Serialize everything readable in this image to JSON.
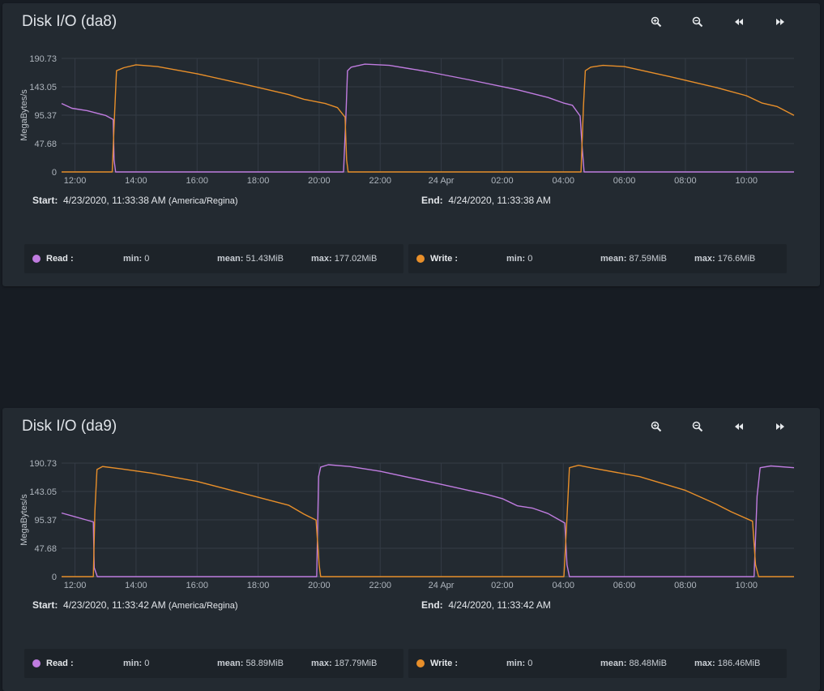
{
  "colors": {
    "read": "#c07ce0",
    "write": "#e88f2a",
    "background": "#171c23",
    "card": "#232a31"
  },
  "toolbar_icons": [
    "zoom-in-icon",
    "zoom-out-icon",
    "rewind-icon",
    "fast-forward-icon"
  ],
  "panels": [
    {
      "title": "Disk I/O (da8)",
      "start_label": "Start:",
      "start_value": "4/23/2020, 11:33:38 AM",
      "start_tz": "(America/Regina)",
      "end_label": "End:",
      "end_value": "4/24/2020, 11:33:38 AM",
      "legend": {
        "read": {
          "name": "Read :",
          "min_label": "min:",
          "min": "0",
          "mean_label": "mean:",
          "mean": "51.43MiB",
          "max_label": "max:",
          "max": "177.02MiB"
        },
        "write": {
          "name": "Write :",
          "min_label": "min:",
          "min": "0",
          "mean_label": "mean:",
          "mean": "87.59MiB",
          "max_label": "max:",
          "max": "176.6MiB"
        }
      }
    },
    {
      "title": "Disk I/O (da9)",
      "start_label": "Start:",
      "start_value": "4/23/2020, 11:33:42 AM",
      "start_tz": "(America/Regina)",
      "end_label": "End:",
      "end_value": "4/24/2020, 11:33:42 AM",
      "legend": {
        "read": {
          "name": "Read :",
          "min_label": "min:",
          "min": "0",
          "mean_label": "mean:",
          "mean": "58.89MiB",
          "max_label": "max:",
          "max": "187.79MiB"
        },
        "write": {
          "name": "Write :",
          "min_label": "min:",
          "min": "0",
          "mean_label": "mean:",
          "mean": "88.48MiB",
          "max_label": "max:",
          "max": "186.46MiB"
        }
      }
    }
  ],
  "chart_data": [
    {
      "type": "line",
      "title": "Disk I/O (da8)",
      "ylabel": "MegaBytes/s",
      "xlabel": "",
      "x_unit": "hours since 4/23/2020 00:00 (America/Regina)",
      "xlim": [
        11.56,
        35.56
      ],
      "ylim": [
        0,
        190.73
      ],
      "yticks": [
        0,
        47.68,
        95.37,
        143.05,
        190.73
      ],
      "ytick_labels": [
        "0",
        "47.68",
        "95.37",
        "143.05",
        "190.73"
      ],
      "xticks": [
        12,
        14,
        16,
        18,
        20,
        22,
        24,
        26,
        28,
        30,
        32,
        34
      ],
      "xtick_labels": [
        "12:00",
        "14:00",
        "16:00",
        "18:00",
        "20:00",
        "22:00",
        "24 Apr",
        "02:00",
        "04:00",
        "06:00",
        "08:00",
        "10:00"
      ],
      "grid": true,
      "legend": "bottom",
      "series": [
        {
          "name": "Read",
          "color": "#c07ce0",
          "x": [
            11.56,
            11.9,
            12.4,
            13.0,
            13.25,
            13.28,
            13.33,
            20.8,
            20.88,
            20.93,
            21.05,
            21.5,
            22.3,
            23.5,
            25.0,
            26.5,
            27.5,
            28.0,
            28.3,
            28.55,
            28.62,
            28.68,
            35.56
          ],
          "y": [
            115,
            107,
            103,
            95,
            88,
            20,
            0,
            0,
            100,
            170,
            176,
            181,
            179,
            169,
            154,
            138,
            125,
            116,
            112,
            94,
            40,
            0,
            0
          ]
        },
        {
          "name": "Write",
          "color": "#e88f2a",
          "x": [
            11.56,
            13.22,
            13.3,
            13.36,
            13.6,
            14.0,
            14.7,
            16.0,
            17.5,
            19.0,
            19.5,
            20.2,
            20.6,
            20.85,
            20.9,
            20.95,
            28.58,
            28.66,
            28.72,
            28.9,
            29.3,
            30.0,
            31.5,
            33.0,
            34.0,
            34.5,
            35.0,
            35.56
          ],
          "y": [
            0,
            0,
            100,
            170,
            175,
            180,
            177,
            165,
            148,
            130,
            122,
            115,
            108,
            92,
            20,
            0,
            0,
            110,
            170,
            176,
            179,
            177,
            160,
            142,
            128,
            116,
            110,
            95
          ]
        }
      ]
    },
    {
      "type": "line",
      "title": "Disk I/O (da9)",
      "ylabel": "MegaBytes/s",
      "xlabel": "",
      "x_unit": "hours since 4/23/2020 00:00 (America/Regina)",
      "xlim": [
        11.56,
        35.56
      ],
      "ylim": [
        0,
        190.73
      ],
      "yticks": [
        0,
        47.68,
        95.37,
        143.05,
        190.73
      ],
      "ytick_labels": [
        "0",
        "47.68",
        "95.37",
        "143.05",
        "190.73"
      ],
      "xticks": [
        12,
        14,
        16,
        18,
        20,
        22,
        24,
        26,
        28,
        30,
        32,
        34
      ],
      "xtick_labels": [
        "12:00",
        "14:00",
        "16:00",
        "18:00",
        "20:00",
        "22:00",
        "24 Apr",
        "02:00",
        "04:00",
        "06:00",
        "08:00",
        "10:00"
      ],
      "grid": true,
      "legend": "bottom",
      "series": [
        {
          "name": "Read",
          "color": "#c07ce0",
          "x": [
            11.56,
            12.6,
            12.63,
            12.73,
            19.92,
            19.98,
            20.05,
            20.3,
            21.0,
            22.0,
            24.0,
            25.5,
            26.0,
            26.5,
            27.0,
            27.5,
            28.05,
            28.12,
            28.2,
            34.25,
            34.35,
            34.45,
            34.8,
            35.56
          ],
          "y": [
            107,
            92,
            15,
            0,
            0,
            168,
            184,
            188,
            185,
            177,
            155,
            138,
            131,
            119,
            115,
            106,
            90,
            20,
            0,
            0,
            135,
            183,
            186,
            183
          ]
        },
        {
          "name": "Write",
          "color": "#e88f2a",
          "x": [
            11.56,
            12.6,
            12.65,
            12.72,
            12.9,
            13.5,
            14.5,
            16.0,
            17.5,
            19.0,
            19.5,
            19.9,
            20.0,
            20.05,
            28.02,
            28.12,
            28.2,
            28.5,
            29.0,
            30.5,
            32.0,
            33.0,
            33.5,
            34.2,
            34.3,
            34.4,
            35.56
          ],
          "y": [
            0,
            0,
            110,
            180,
            185,
            181,
            174,
            160,
            140,
            120,
            105,
            95,
            20,
            0,
            0,
            100,
            183,
            187,
            182,
            168,
            145,
            122,
            109,
            93,
            20,
            0,
            0
          ]
        }
      ]
    }
  ]
}
